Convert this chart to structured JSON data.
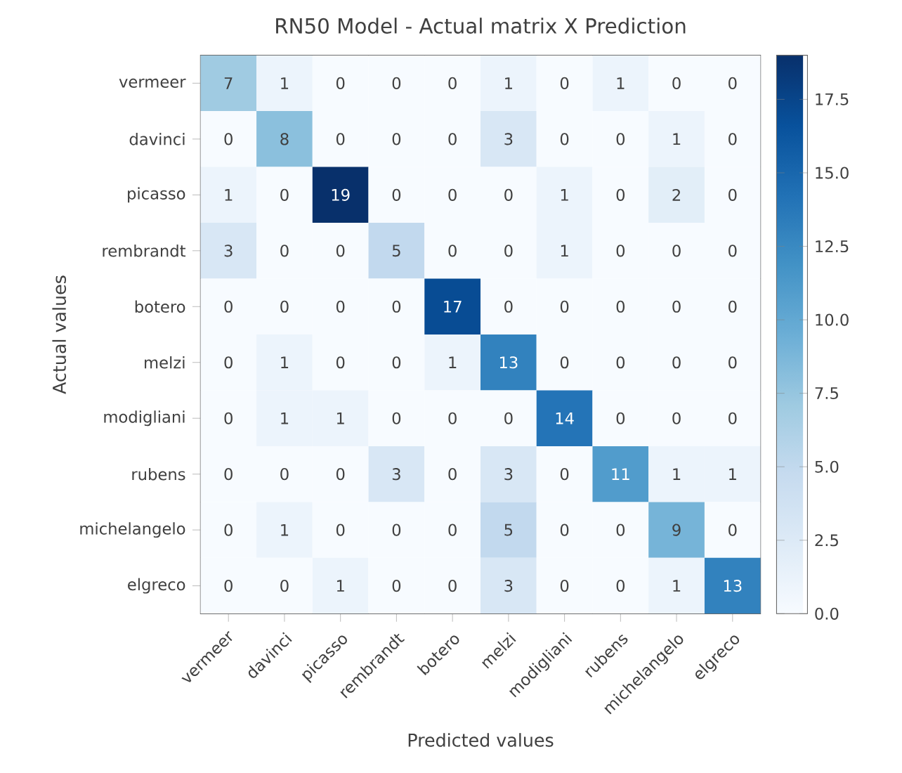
{
  "chart_data": {
    "type": "heatmap",
    "title": "RN50 Model - Actual matrix X Prediction",
    "xlabel": "Predicted values",
    "ylabel": "Actual values",
    "categories": [
      "vermeer",
      "davinci",
      "picasso",
      "rembrandt",
      "botero",
      "melzi",
      "modigliani",
      "rubens",
      "michelangelo",
      "elgreco"
    ],
    "y_categories": [
      "vermeer",
      "davinci",
      "picasso",
      "rembrandt",
      "botero",
      "melzi",
      "modigliani",
      "rubens",
      "michelangelo",
      "elgreco"
    ],
    "cells": [
      [
        7,
        1,
        0,
        0,
        0,
        1,
        0,
        1,
        0,
        0
      ],
      [
        0,
        8,
        0,
        0,
        0,
        3,
        0,
        0,
        1,
        0
      ],
      [
        1,
        0,
        19,
        0,
        0,
        0,
        1,
        0,
        2,
        0
      ],
      [
        3,
        0,
        0,
        5,
        0,
        0,
        1,
        0,
        0,
        0
      ],
      [
        0,
        0,
        0,
        0,
        17,
        0,
        0,
        0,
        0,
        0
      ],
      [
        0,
        1,
        0,
        0,
        1,
        13,
        0,
        0,
        0,
        0
      ],
      [
        0,
        1,
        1,
        0,
        0,
        0,
        14,
        0,
        0,
        0
      ],
      [
        0,
        0,
        0,
        3,
        0,
        3,
        0,
        11,
        1,
        1
      ],
      [
        0,
        1,
        0,
        0,
        0,
        5,
        0,
        0,
        9,
        0
      ],
      [
        0,
        0,
        1,
        0,
        0,
        3,
        0,
        0,
        1,
        13
      ]
    ],
    "clim": [
      0,
      19
    ],
    "cticks": [
      {
        "value": 0,
        "label": "0.0"
      },
      {
        "value": 2.5,
        "label": "2.5"
      },
      {
        "value": 5,
        "label": "5.0"
      },
      {
        "value": 7.5,
        "label": "7.5"
      },
      {
        "value": 10,
        "label": "10.0"
      },
      {
        "value": 12.5,
        "label": "12.5"
      },
      {
        "value": 15,
        "label": "15.0"
      },
      {
        "value": 17.5,
        "label": "17.5"
      }
    ],
    "data_labels": true
  }
}
